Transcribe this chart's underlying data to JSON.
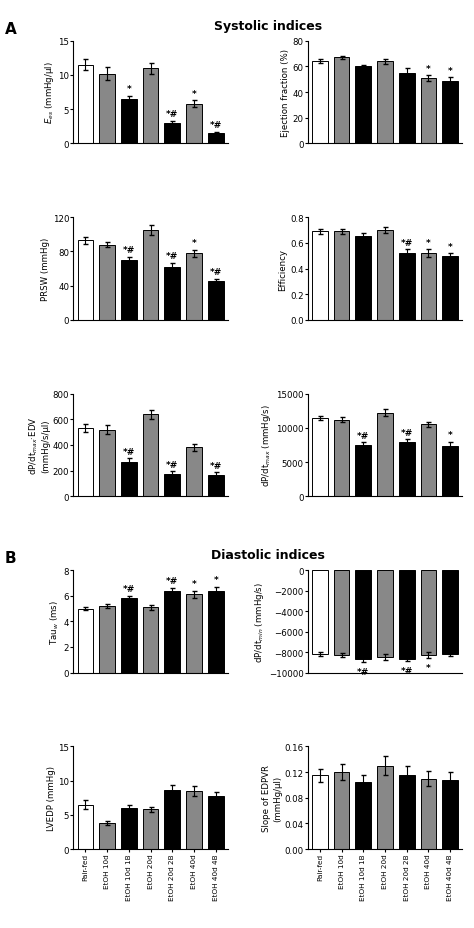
{
  "title_A": "Systolic indices",
  "title_B": "Diastolic indices",
  "categories": [
    "Pair-fed",
    "EtOH 10d",
    "EtOH 10d 1B",
    "EtOH 20d",
    "EtOH 20d 2B",
    "EtOH 40d",
    "EtOH 40d 4B"
  ],
  "bar_colors": [
    "white",
    "#888888",
    "black",
    "#888888",
    "black",
    "#888888",
    "black"
  ],
  "bar_edgecolor": "black",
  "Ees_means": [
    11.5,
    10.2,
    6.5,
    11.0,
    3.0,
    5.8,
    1.5
  ],
  "Ees_sems": [
    0.8,
    0.9,
    0.5,
    0.8,
    0.3,
    0.5,
    0.2
  ],
  "Ees_ylabel": "$E_{es}$ (mmHg/μl)",
  "Ees_ylim": [
    0,
    15
  ],
  "Ees_yticks": [
    0,
    5,
    10,
    15
  ],
  "Ees_sig": [
    "",
    "",
    "*",
    "",
    "*#",
    "*",
    "*#"
  ],
  "EF_means": [
    64,
    67,
    60,
    64,
    55,
    51,
    49
  ],
  "EF_sems": [
    1.5,
    1.0,
    1.5,
    2.0,
    4.0,
    2.0,
    2.5
  ],
  "EF_ylabel": "Ejection fraction (%)",
  "EF_ylim": [
    0,
    80
  ],
  "EF_yticks": [
    0,
    20,
    40,
    60,
    80
  ],
  "EF_sig": [
    "",
    "",
    "",
    "",
    "",
    "*",
    "*"
  ],
  "PRSW_means": [
    93,
    88,
    70,
    105,
    62,
    78,
    45
  ],
  "PRSW_sems": [
    4,
    3,
    4,
    6,
    5,
    4,
    3
  ],
  "PRSW_ylabel": "PRSW (mmHg)",
  "PRSW_ylim": [
    0,
    120
  ],
  "PRSW_yticks": [
    0,
    40,
    80,
    120
  ],
  "PRSW_sig": [
    "",
    "",
    "*#",
    "",
    "*#",
    "*",
    "*#"
  ],
  "Eff_means": [
    0.69,
    0.69,
    0.65,
    0.7,
    0.52,
    0.52,
    0.5
  ],
  "Eff_sems": [
    0.02,
    0.02,
    0.03,
    0.02,
    0.03,
    0.03,
    0.02
  ],
  "Eff_ylabel": "Efficiency",
  "Eff_ylim": [
    0.0,
    0.8
  ],
  "Eff_yticks": [
    0.0,
    0.2,
    0.4,
    0.6,
    0.8
  ],
  "Eff_sig": [
    "",
    "",
    "",
    "",
    "*#",
    "*",
    "*"
  ],
  "dPdtEDV_means": [
    530,
    520,
    270,
    640,
    175,
    380,
    165
  ],
  "dPdtEDV_sems": [
    30,
    35,
    25,
    35,
    20,
    25,
    20
  ],
  "dPdtEDV_ylabel": "dP/dt$_{max}$·EDV\n(mmHg/s/μl)",
  "dPdtEDV_ylim": [
    0,
    800
  ],
  "dPdtEDV_yticks": [
    0,
    200,
    400,
    600,
    800
  ],
  "dPdtEDV_sig": [
    "",
    "",
    "*#",
    "",
    "*#",
    "",
    "*#"
  ],
  "dPdtmax_means": [
    11500,
    11200,
    7500,
    12200,
    8000,
    10500,
    7400
  ],
  "dPdtmax_sems": [
    300,
    400,
    400,
    500,
    350,
    400,
    600
  ],
  "dPdtmax_ylabel": "dP/dt$_{max}$ (mmHg/s)",
  "dPdtmax_ylim": [
    0,
    15000
  ],
  "dPdtmax_yticks": [
    0,
    5000,
    10000,
    15000
  ],
  "dPdtmax_sig": [
    "",
    "",
    "*#",
    "",
    "*#",
    "",
    "*"
  ],
  "Tauw_means": [
    5.0,
    5.2,
    5.8,
    5.1,
    6.4,
    6.1,
    6.4
  ],
  "Tauw_sems": [
    0.15,
    0.15,
    0.2,
    0.2,
    0.2,
    0.3,
    0.3
  ],
  "Tauw_ylabel": "Tau$_w$ (ms)",
  "Tauw_ylim": [
    0,
    8
  ],
  "Tauw_yticks": [
    0,
    2,
    4,
    6,
    8
  ],
  "Tauw_sig": [
    "",
    "",
    "*#",
    "",
    "*#",
    "*",
    "*"
  ],
  "dPdtmin_means": [
    -8200,
    -8300,
    -8700,
    -8500,
    -8700,
    -8300,
    -8200
  ],
  "dPdtmin_sems": [
    200,
    200,
    300,
    300,
    200,
    300,
    200
  ],
  "dPdtmin_ylabel": "dP/dt$_{min}$ (mmHg/s)",
  "dPdtmin_ylim": [
    -10000,
    0
  ],
  "dPdtmin_yticks": [
    -10000,
    -8000,
    -6000,
    -4000,
    -2000,
    0
  ],
  "dPdtmin_sig": [
    "",
    "",
    "*#",
    "",
    "*#",
    "*",
    ""
  ],
  "LVEDP_means": [
    6.5,
    3.8,
    6.0,
    5.8,
    8.7,
    8.5,
    7.8
  ],
  "LVEDP_sems": [
    0.6,
    0.3,
    0.5,
    0.4,
    0.6,
    0.7,
    0.5
  ],
  "LVEDP_ylabel": "LVEDP (mmHg)",
  "LVEDP_ylim": [
    0,
    15
  ],
  "LVEDP_yticks": [
    0,
    5,
    10,
    15
  ],
  "LVEDP_sig": [
    "",
    "",
    "",
    "",
    "",
    "",
    ""
  ],
  "EDPVR_means": [
    0.115,
    0.12,
    0.105,
    0.13,
    0.115,
    0.11,
    0.108
  ],
  "EDPVR_sems": [
    0.01,
    0.012,
    0.01,
    0.015,
    0.015,
    0.012,
    0.012
  ],
  "EDPVR_ylabel": "Slope of EDPVR\n(mmHg/μl)",
  "EDPVR_ylim": [
    0.0,
    0.16
  ],
  "EDPVR_yticks": [
    0.0,
    0.04,
    0.08,
    0.12,
    0.16
  ],
  "EDPVR_sig": [
    "",
    "",
    "",
    "",
    "",
    "",
    ""
  ]
}
